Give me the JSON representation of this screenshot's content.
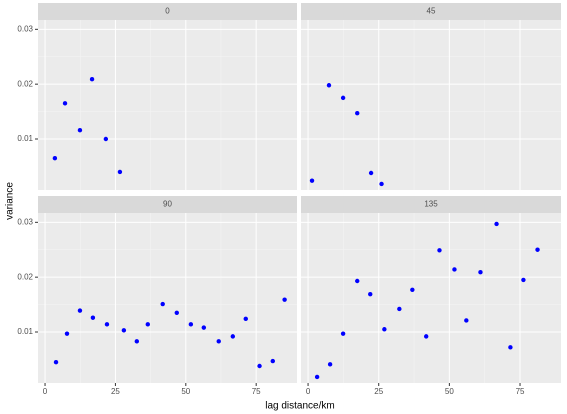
{
  "chart_data": {
    "type": "scatter",
    "xlabel": "lag distance/km",
    "ylabel": "variance",
    "color": "#0000ff",
    "grid": true,
    "xlim": [
      -2.5,
      89.5
    ],
    "xticks": [
      0,
      25,
      50,
      75
    ],
    "ylim": [
      0.0007,
      0.0317
    ],
    "yticks": [
      0.01,
      0.02,
      0.03
    ],
    "facets": [
      {
        "title": "0",
        "x": [
          3.5,
          7.1,
          12.4,
          16.7,
          21.6,
          26.6
        ],
        "values": [
          0.0065,
          0.0165,
          0.0116,
          0.0209,
          0.01,
          0.004
        ]
      },
      {
        "title": "45",
        "x": [
          1.4,
          7.4,
          12.4,
          17.4,
          22.3,
          26.0
        ],
        "values": [
          0.0024,
          0.0198,
          0.0175,
          0.0147,
          0.0038,
          0.0018
        ]
      },
      {
        "title": "90",
        "x": [
          3.9,
          7.8,
          12.4,
          17.0,
          22.0,
          28.0,
          32.6,
          36.5,
          41.8,
          46.8,
          51.8,
          56.4,
          61.7,
          66.7,
          71.3,
          76.2,
          80.9,
          85.1
        ],
        "values": [
          0.0045,
          0.0097,
          0.0139,
          0.0126,
          0.0114,
          0.0103,
          0.0083,
          0.0114,
          0.0151,
          0.0135,
          0.0114,
          0.0108,
          0.0083,
          0.0092,
          0.0124,
          0.0038,
          0.0047,
          0.0159
        ]
      },
      {
        "title": "135",
        "x": [
          3.2,
          7.8,
          12.4,
          17.4,
          22.0,
          27.0,
          32.3,
          36.9,
          41.8,
          46.5,
          51.8,
          56.0,
          61.0,
          66.7,
          71.6,
          76.2,
          81.2
        ],
        "values": [
          0.0018,
          0.0041,
          0.0097,
          0.0193,
          0.0169,
          0.0105,
          0.0142,
          0.0177,
          0.0092,
          0.0249,
          0.0214,
          0.0121,
          0.0209,
          0.0297,
          0.0072,
          0.0195,
          0.025
        ]
      }
    ]
  }
}
